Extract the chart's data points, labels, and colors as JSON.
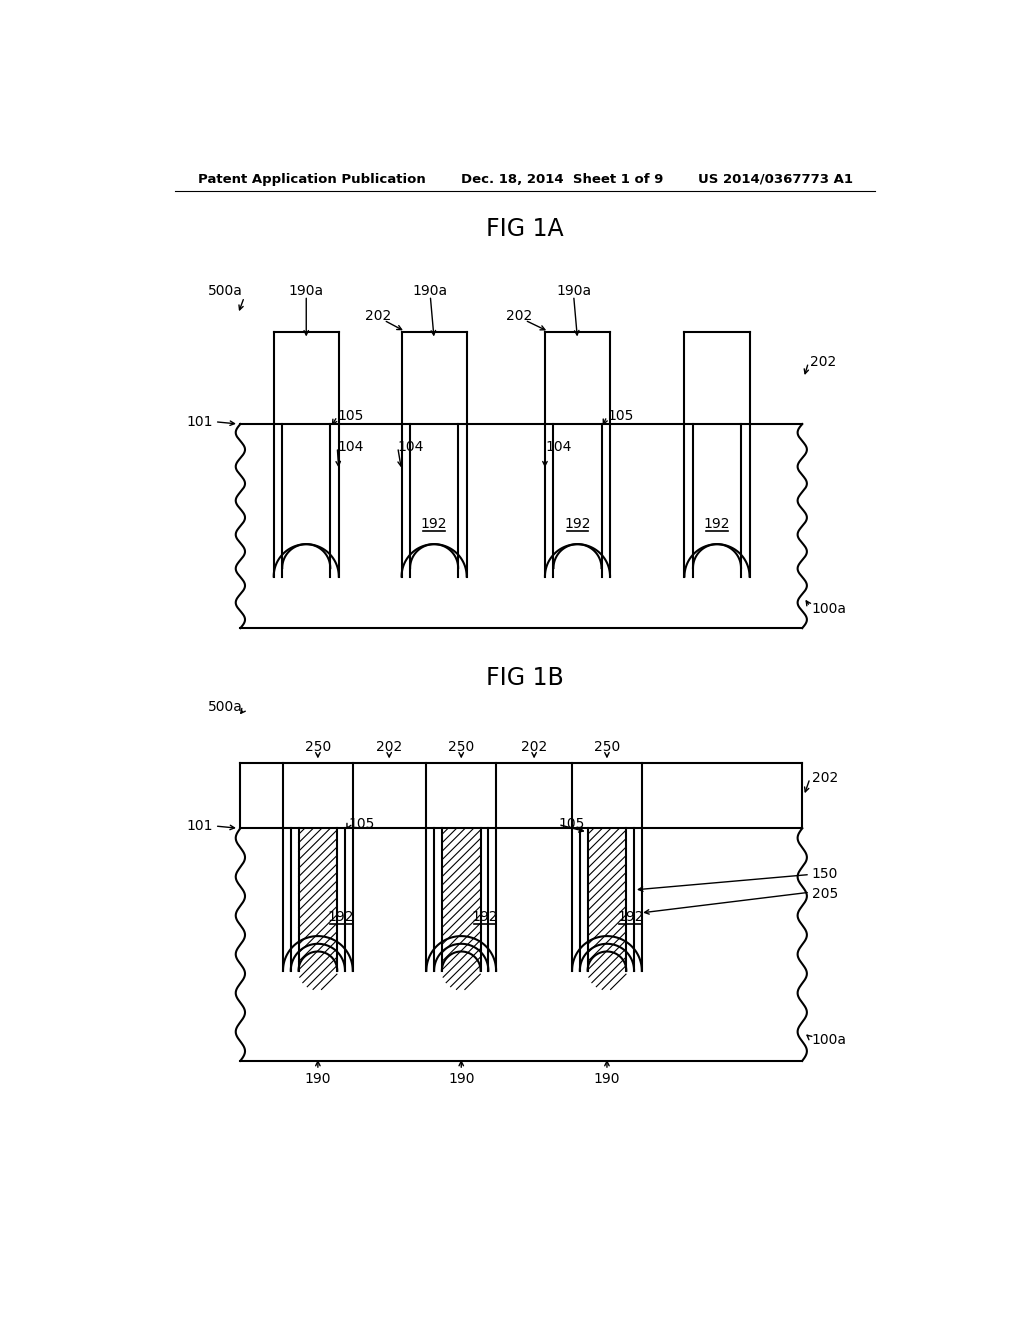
{
  "header_left": "Patent Application Publication",
  "header_center": "Dec. 18, 2014  Sheet 1 of 9",
  "header_right": "US 2014/0367773 A1",
  "fig1a_title": "FIG 1A",
  "fig1b_title": "FIG 1B",
  "bg_color": "#ffffff",
  "line_color": "#000000"
}
